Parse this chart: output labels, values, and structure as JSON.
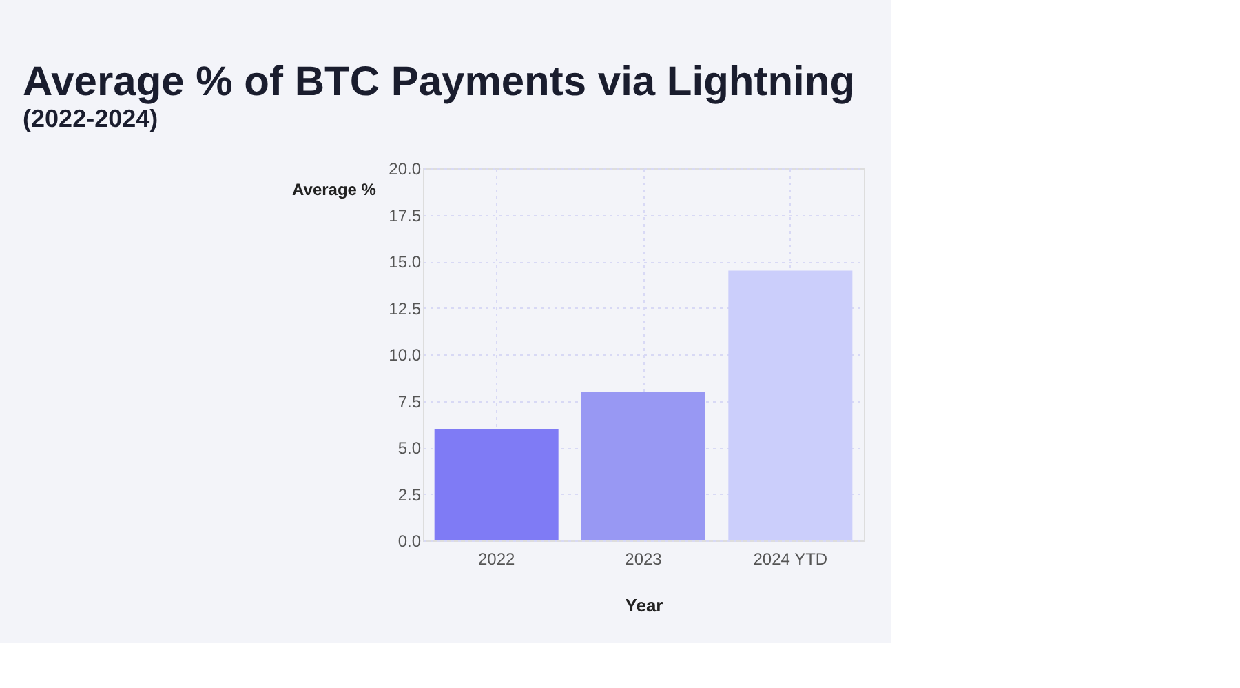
{
  "chart_data": {
    "type": "bar",
    "title": "Average % of BTC Payments via Lightning",
    "subtitle": "(2022-2024)",
    "xlabel": "Year",
    "ylabel": "Average %",
    "categories": [
      "2022",
      "2023",
      "2024 YTD"
    ],
    "values": [
      6.0,
      8.0,
      14.5
    ],
    "colors": [
      "#7f7bf5",
      "#9898f3",
      "#cbcefb"
    ],
    "ylim": [
      0,
      20
    ],
    "yticks": [
      {
        "value": 0,
        "label": "0.0"
      },
      2.5,
      {
        "value": 5,
        "label": "5.0"
      },
      7.5,
      {
        "value": 10,
        "label": "10.0"
      },
      12.5,
      {
        "value": 15,
        "label": "15.0"
      },
      17.5,
      {
        "value": 20,
        "label": "20.0"
      }
    ],
    "grid": true
  }
}
